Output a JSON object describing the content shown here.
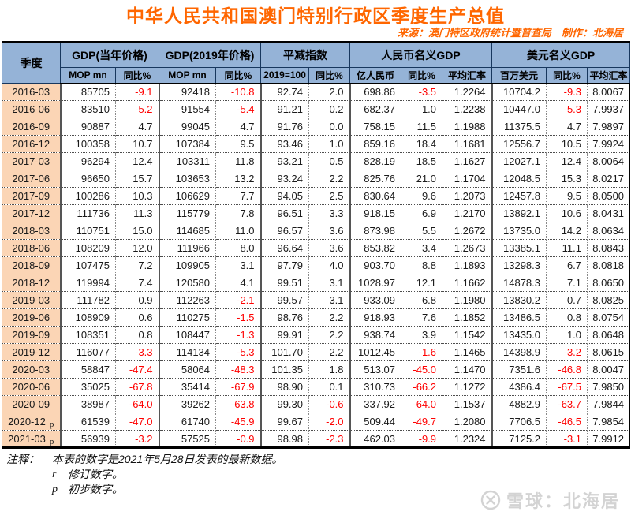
{
  "title": "中华人民共和国澳门特别行政区季度生产总值",
  "credits": "来源：澳门特区政府统计暨普查局　制作：北海居",
  "chart_data": {
    "type": "table",
    "title": "中华人民共和国澳门特别行政区季度生产总值",
    "quarter_header": "季度",
    "groups": [
      {
        "label": "GDP(当年价格)",
        "subs": [
          "MOP mn",
          "同比%"
        ]
      },
      {
        "label": "GDP(2019年价格)",
        "subs": [
          "MOP mn",
          "同比%"
        ]
      },
      {
        "label": "平减指数",
        "subs": [
          "2019=100",
          "同比%"
        ]
      },
      {
        "label": "人民币名义GDP",
        "subs": [
          "亿人民币",
          "同比%",
          "平均汇率"
        ]
      },
      {
        "label": "美元名义GDP",
        "subs": [
          "百万美元",
          "同比%",
          "平均汇率"
        ]
      }
    ],
    "rows": [
      {
        "quarter": "2016-03",
        "flag": "",
        "values": [
          "85705",
          "-9.1",
          "92418",
          "-10.8",
          "92.74",
          "2.0",
          "698.86",
          "-3.5",
          "1.2264",
          "10704.2",
          "-9.3",
          "8.0067"
        ]
      },
      {
        "quarter": "2016-06",
        "flag": "",
        "values": [
          "83510",
          "-5.2",
          "91554",
          "-5.4",
          "91.21",
          "0.2",
          "682.37",
          "1.0",
          "1.2238",
          "10447.0",
          "-5.3",
          "7.9937"
        ]
      },
      {
        "quarter": "2016-09",
        "flag": "",
        "values": [
          "90887",
          "4.7",
          "99045",
          "4.7",
          "91.76",
          "0.0",
          "758.15",
          "11.5",
          "1.1988",
          "11375.5",
          "4.7",
          "7.9897"
        ]
      },
      {
        "quarter": "2016-12",
        "flag": "",
        "values": [
          "100358",
          "10.7",
          "107384",
          "9.5",
          "93.46",
          "1.0",
          "859.16",
          "18.4",
          "1.1681",
          "12556.7",
          "10.5",
          "7.9924"
        ]
      },
      {
        "quarter": "2017-03",
        "flag": "",
        "values": [
          "96294",
          "12.4",
          "103311",
          "11.8",
          "93.21",
          "0.5",
          "828.19",
          "18.5",
          "1.1627",
          "12027.1",
          "12.4",
          "8.0064"
        ]
      },
      {
        "quarter": "2017-06",
        "flag": "",
        "values": [
          "96650",
          "15.7",
          "103653",
          "13.2",
          "93.24",
          "2.2",
          "825.76",
          "21.0",
          "1.1704",
          "12048.5",
          "15.3",
          "8.0217"
        ]
      },
      {
        "quarter": "2017-09",
        "flag": "",
        "values": [
          "100286",
          "10.3",
          "106629",
          "7.7",
          "94.05",
          "2.5",
          "830.64",
          "9.6",
          "1.2073",
          "12457.8",
          "9.5",
          "8.0500"
        ]
      },
      {
        "quarter": "2017-12",
        "flag": "",
        "values": [
          "111736",
          "11.3",
          "115779",
          "7.8",
          "96.51",
          "3.3",
          "918.15",
          "6.9",
          "1.2170",
          "13892.1",
          "10.6",
          "8.0431"
        ]
      },
      {
        "quarter": "2018-03",
        "flag": "",
        "values": [
          "110751",
          "15.0",
          "114685",
          "11.0",
          "96.57",
          "3.6",
          "873.98",
          "5.5",
          "1.2672",
          "13735.0",
          "14.2",
          "8.0634"
        ]
      },
      {
        "quarter": "2018-06",
        "flag": "",
        "values": [
          "108209",
          "12.0",
          "111966",
          "8.0",
          "96.64",
          "3.6",
          "853.82",
          "3.4",
          "1.2673",
          "13385.1",
          "11.1",
          "8.0843"
        ]
      },
      {
        "quarter": "2018-09",
        "flag": "",
        "values": [
          "107475",
          "7.2",
          "109905",
          "3.1",
          "97.79",
          "4.0",
          "903.70",
          "8.8",
          "1.1893",
          "13298.3",
          "6.7",
          "8.0818"
        ]
      },
      {
        "quarter": "2018-12",
        "flag": "",
        "values": [
          "119994",
          "7.4",
          "120580",
          "4.1",
          "99.51",
          "3.1",
          "1028.97",
          "12.1",
          "1.1662",
          "14878.3",
          "7.1",
          "8.0650"
        ]
      },
      {
        "quarter": "2019-03",
        "flag": "",
        "values": [
          "111782",
          "0.9",
          "112263",
          "-2.1",
          "99.57",
          "3.1",
          "933.09",
          "6.8",
          "1.1980",
          "13830.2",
          "0.7",
          "8.0825"
        ]
      },
      {
        "quarter": "2019-06",
        "flag": "",
        "values": [
          "108909",
          "0.6",
          "110275",
          "-1.5",
          "98.76",
          "2.2",
          "918.93",
          "7.6",
          "1.1852",
          "13486.5",
          "0.8",
          "8.0754"
        ]
      },
      {
        "quarter": "2019-09",
        "flag": "",
        "values": [
          "108351",
          "0.8",
          "108447",
          "-1.3",
          "99.91",
          "2.2",
          "938.74",
          "3.9",
          "1.1542",
          "13435.0",
          "1.0",
          "8.0648"
        ]
      },
      {
        "quarter": "2019-12",
        "flag": "",
        "values": [
          "116077",
          "-3.3",
          "114134",
          "-5.3",
          "101.70",
          "2.2",
          "1012.45",
          "-1.6",
          "1.1465",
          "14398.9",
          "-3.2",
          "8.0615"
        ]
      },
      {
        "quarter": "2020-03",
        "flag": "",
        "values": [
          "58847",
          "-47.4",
          "58064",
          "-48.3",
          "101.35",
          "1.8",
          "513.07",
          "-45.0",
          "1.1470",
          "7351.6",
          "-46.8",
          "8.0047"
        ]
      },
      {
        "quarter": "2020-06",
        "flag": "",
        "values": [
          "35025",
          "-67.8",
          "35414",
          "-67.9",
          "98.90",
          "0.1",
          "310.73",
          "-66.2",
          "1.1272",
          "4386.4",
          "-67.5",
          "7.9850"
        ]
      },
      {
        "quarter": "2020-09",
        "flag": "",
        "values": [
          "38987",
          "-64.0",
          "39262",
          "-63.8",
          "99.30",
          "-0.6",
          "337.92",
          "-64.0",
          "1.1537",
          "4882.9",
          "-63.7",
          "7.9844"
        ]
      },
      {
        "quarter": "2020-12",
        "flag": "p",
        "values": [
          "61539",
          "-47.0",
          "61740",
          "-45.9",
          "99.67",
          "-2.0",
          "509.44",
          "-49.7",
          "1.2080",
          "7706.5",
          "-46.5",
          "7.9854"
        ]
      },
      {
        "quarter": "2021-03",
        "flag": "p",
        "values": [
          "56939",
          "-3.2",
          "57525",
          "-0.9",
          "98.98",
          "-2.3",
          "462.03",
          "-9.9",
          "1.2324",
          "7125.2",
          "-3.1",
          "7.9912"
        ]
      }
    ]
  },
  "notes": {
    "label": "注释：",
    "main": "本表的数字是2021年5月28日发表的最新数据。",
    "items": [
      {
        "marker": "r",
        "text": "修订数字。"
      },
      {
        "marker": "p",
        "text": "初步数字。"
      }
    ]
  },
  "watermark": {
    "logo": "xueqiu-snowball-logo",
    "text": "雪球：北海居"
  },
  "colors": {
    "title_orange": "#FF6600",
    "header_blue_bg": "#95B3D7",
    "quarter_peach_bg": "#FBD5B5",
    "negative_red": "#FF0000",
    "watermark_gray": "#D3D3D3"
  }
}
